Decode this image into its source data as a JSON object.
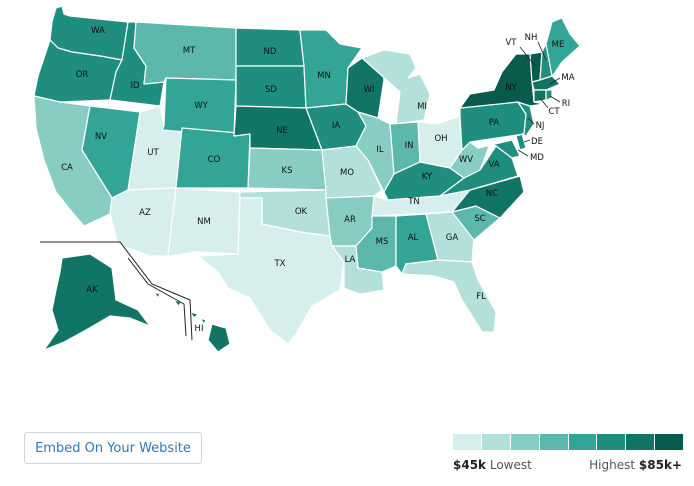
{
  "colors": [
    "#d7efec",
    "#b3e0da",
    "#88cdc3",
    "#5cb8ab",
    "#33a596",
    "#1f8e7f",
    "#117566",
    "#075a4c"
  ],
  "states": {
    "WA": {
      "label": "WA",
      "level": 5
    },
    "OR": {
      "label": "OR",
      "level": 5
    },
    "CA": {
      "label": "CA",
      "level": 2
    },
    "ID": {
      "label": "ID",
      "level": 5
    },
    "NV": {
      "label": "NV",
      "level": 4
    },
    "UT": {
      "label": "UT",
      "level": 0
    },
    "AZ": {
      "label": "AZ",
      "level": 0
    },
    "MT": {
      "label": "MT",
      "level": 3
    },
    "WY": {
      "label": "WY",
      "level": 4
    },
    "CO": {
      "label": "CO",
      "level": 4
    },
    "NM": {
      "label": "NM",
      "level": 0
    },
    "ND": {
      "label": "ND",
      "level": 5
    },
    "SD": {
      "label": "SD",
      "level": 5
    },
    "NE": {
      "label": "NE",
      "level": 6
    },
    "KS": {
      "label": "KS",
      "level": 2
    },
    "OK": {
      "label": "OK",
      "level": 1
    },
    "TX": {
      "label": "TX",
      "level": 0
    },
    "MN": {
      "label": "MN",
      "level": 4
    },
    "IA": {
      "label": "IA",
      "level": 5
    },
    "MO": {
      "label": "MO",
      "level": 1
    },
    "AR": {
      "label": "AR",
      "level": 2
    },
    "LA": {
      "label": "LA",
      "level": 1
    },
    "WI": {
      "label": "WI",
      "level": 6
    },
    "IL": {
      "label": "IL",
      "level": 2
    },
    "MI": {
      "label": "MI",
      "level": 1
    },
    "IN": {
      "label": "IN",
      "level": 3
    },
    "OH": {
      "label": "OH",
      "level": 0
    },
    "KY": {
      "label": "KY",
      "level": 5
    },
    "TN": {
      "label": "TN",
      "level": 0
    },
    "MS": {
      "label": "MS",
      "level": 3
    },
    "AL": {
      "label": "AL",
      "level": 4
    },
    "GA": {
      "label": "GA",
      "level": 1
    },
    "FL": {
      "label": "FL",
      "level": 1
    },
    "SC": {
      "label": "SC",
      "level": 3
    },
    "NC": {
      "label": "NC",
      "level": 6
    },
    "VA": {
      "label": "VA",
      "level": 5
    },
    "WV": {
      "label": "WV",
      "level": 2
    },
    "PA": {
      "label": "PA",
      "level": 5
    },
    "NY": {
      "label": "NY",
      "level": 7
    },
    "VT": {
      "label": "VT",
      "level": 7
    },
    "NH": {
      "label": "NH",
      "level": 5
    },
    "ME": {
      "label": "ME",
      "level": 4
    },
    "MA": {
      "label": "MA",
      "level": 6
    },
    "CT": {
      "label": "CT",
      "level": 6
    },
    "RI": {
      "label": "RI",
      "level": 5
    },
    "NJ": {
      "label": "NJ",
      "level": 5
    },
    "DE": {
      "label": "DE",
      "level": 5
    },
    "MD": {
      "label": "MD",
      "level": 5
    },
    "AK": {
      "label": "AK",
      "level": 6
    },
    "HI": {
      "label": "HI",
      "level": 6
    }
  },
  "embed_button": "Embed On Your Website",
  "legend": {
    "low_value": "$45k",
    "low_text": "Lowest",
    "high_text": "Highest",
    "high_value": "$85k+"
  }
}
